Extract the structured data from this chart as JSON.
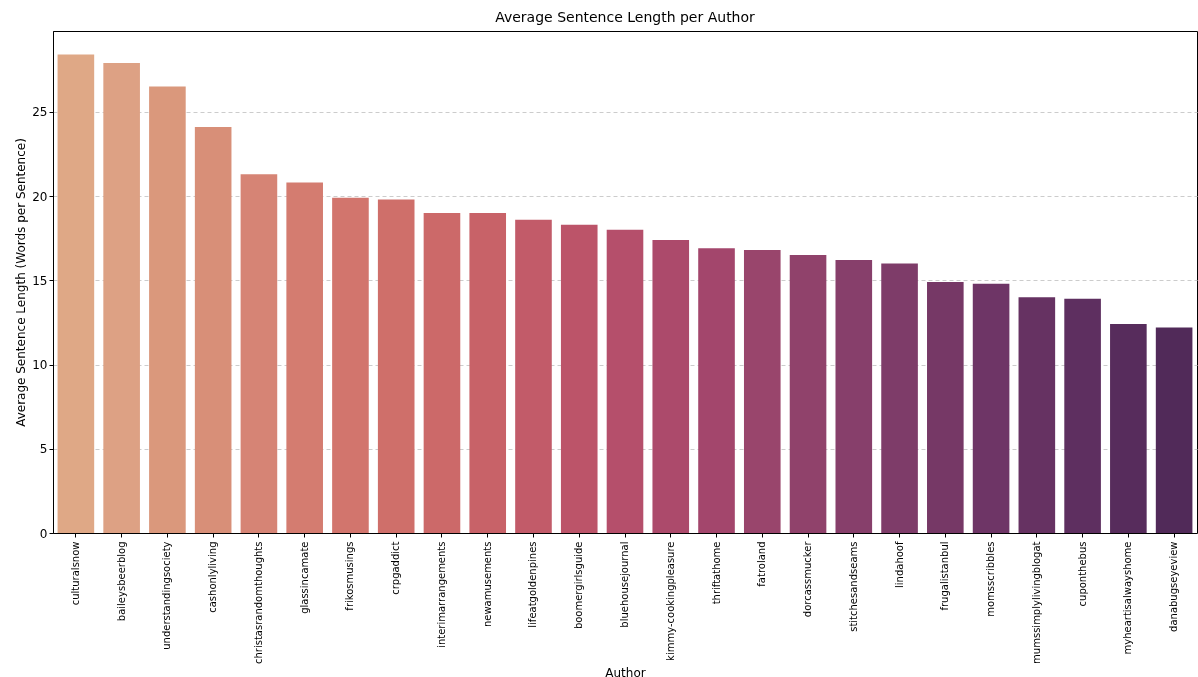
{
  "chart_data": {
    "type": "bar",
    "title": "Average Sentence Length per Author",
    "xlabel": "Author",
    "ylabel": "Average Sentence Length (Words per Sentence)",
    "categories": [
      "culturalsnow",
      "baileysbeerblog",
      "understandingsociety",
      "cashonlyliving",
      "christasrandomthoughts",
      "glassincamate",
      "frikosmusings",
      "crpgaddict",
      "interimarrangements",
      "newamusements",
      "lifeatgoldenpines",
      "boomergirlsguide",
      "bluehousejournal",
      "kimmy-cookingpleasure",
      "thriftathome",
      "fatroland",
      "dorcassmucker",
      "stitchesandseams",
      "lindahoof",
      "frugalistanbul",
      "momsscribbles",
      "mumssimplylivingblogat",
      "cuponthebus",
      "myheartisalwayshome",
      "danabugseyeview"
    ],
    "values": [
      28.4,
      27.9,
      26.5,
      24.1,
      21.3,
      20.8,
      19.9,
      19.8,
      19.0,
      19.0,
      18.6,
      18.3,
      18.0,
      17.4,
      16.9,
      16.8,
      16.5,
      16.2,
      16.0,
      14.9,
      14.8,
      14.0,
      13.9,
      12.4,
      12.2
    ],
    "colors": [
      "#dfa886",
      "#dda184",
      "#da987c",
      "#d88f78",
      "#d68475",
      "#d47c70",
      "#d2756d",
      "#cf6f6a",
      "#cc6969",
      "#c86268",
      "#c25b69",
      "#bc5469",
      "#b54f6b",
      "#ac4a6b",
      "#a3466c",
      "#99456c",
      "#90426b",
      "#873f6b",
      "#7e3c69",
      "#763866",
      "#6e3566",
      "#663262",
      "#5e2f60",
      "#572c5c",
      "#512a59"
    ],
    "ylim": [
      0,
      29.8
    ],
    "yticks": [
      0,
      5,
      10,
      15,
      20,
      25
    ],
    "grid": "y"
  }
}
